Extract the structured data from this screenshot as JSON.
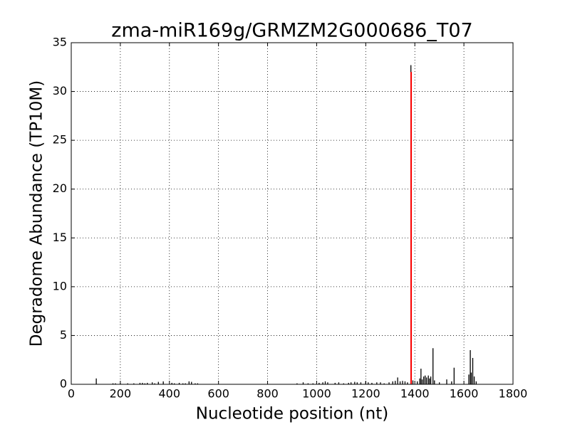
{
  "chart_data": {
    "type": "vlines",
    "title": "zma-miR169g/GRMZM2G000686_T07",
    "x_label": "Nucleotide position (nt)",
    "y_label": "Degradome Abundance (TP10M)",
    "xlim": [
      0,
      1800
    ],
    "xticks": [
      0,
      200,
      400,
      600,
      800,
      1000,
      1200,
      1400,
      1600,
      1800
    ],
    "ylim": [
      0,
      35
    ],
    "yticks": [
      0,
      5,
      10,
      15,
      20,
      25,
      30,
      35
    ],
    "grid": true,
    "series": [
      {
        "color": "#000000",
        "x": [
          102,
          170,
          180,
          200,
          230,
          255,
          280,
          290,
          300,
          310,
          330,
          340,
          355,
          375,
          410,
          420,
          440,
          455,
          465,
          480,
          490,
          505,
          515,
          920,
          945,
          965,
          985,
          1010,
          1025,
          1035,
          1045,
          1075,
          1090,
          1110,
          1130,
          1140,
          1155,
          1165,
          1180,
          1200,
          1210,
          1225,
          1245,
          1260,
          1275,
          1295,
          1310,
          1320,
          1330,
          1340,
          1350,
          1360,
          1370,
          1384,
          1392,
          1410,
          1420,
          1425,
          1430,
          1436,
          1442,
          1448,
          1455,
          1460,
          1465,
          1474,
          1480,
          1500,
          1530,
          1550,
          1560,
          1620,
          1626,
          1630,
          1636,
          1642,
          1650
        ],
        "values": [
          0.6,
          0.1,
          0.1,
          0.1,
          0.1,
          0.1,
          0.15,
          0.15,
          0.1,
          0.15,
          0.2,
          0.1,
          0.25,
          0.3,
          0.15,
          0.1,
          0.15,
          0.1,
          0.1,
          0.3,
          0.25,
          0.1,
          0.1,
          0.1,
          0.2,
          0.1,
          0.1,
          0.15,
          0.2,
          0.3,
          0.2,
          0.15,
          0.2,
          0.1,
          0.15,
          0.2,
          0.25,
          0.2,
          0.2,
          0.3,
          0.2,
          0.15,
          0.2,
          0.2,
          0.1,
          0.2,
          0.3,
          0.35,
          0.7,
          0.3,
          0.35,
          0.3,
          0.2,
          32.7,
          0.4,
          0.3,
          0.6,
          1.6,
          0.5,
          0.8,
          0.9,
          0.7,
          0.9,
          0.6,
          0.8,
          3.7,
          0.4,
          0.2,
          0.5,
          0.3,
          1.7,
          1.0,
          3.5,
          1.2,
          2.7,
          0.8,
          0.3
        ]
      },
      {
        "color": "#ff0000",
        "x": [
          1385
        ],
        "values": [
          32
        ]
      }
    ]
  }
}
